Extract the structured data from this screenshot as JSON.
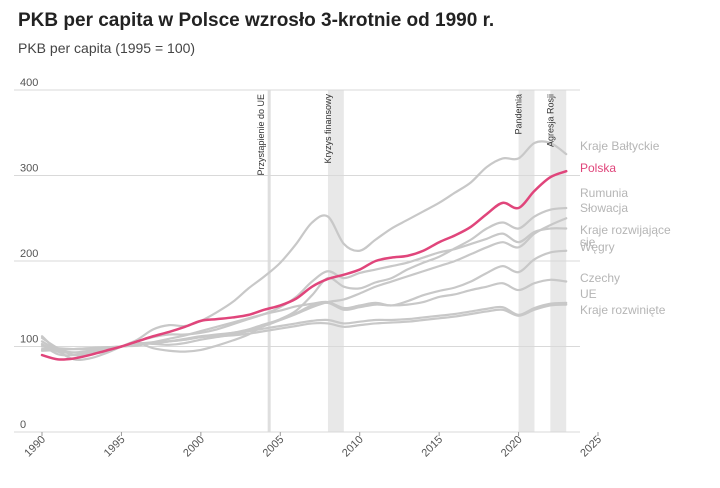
{
  "chart_data": {
    "type": "line",
    "title": "PKB per capita w Polsce wzrosło 3-krotnie od 1990 r.",
    "subtitle": "PKB per capita (1995 = 100)",
    "xlabel": "",
    "ylabel": "",
    "xlim": [
      1990,
      2025
    ],
    "ylim": [
      0,
      400
    ],
    "x_ticks": [
      "1990",
      "1995",
      "2000",
      "2005",
      "2010",
      "2015",
      "2020",
      "2025"
    ],
    "y_ticks": [
      "0",
      "100",
      "200",
      "300",
      "400"
    ],
    "gridlines": "horizontal",
    "highlight_color": "#e0457b",
    "base_color": "#c8c8c8",
    "annotations": [
      {
        "label": "Przystąpienie do UE",
        "year": 2004.3
      },
      {
        "label": "Kryzys finansowy",
        "year_start": 2008,
        "year_end": 2009
      },
      {
        "label": "Pandemia",
        "year_start": 2020,
        "year_end": 2021
      },
      {
        "label": "Agresja Rosji",
        "year_start": 2022,
        "year_end": 2023
      }
    ],
    "x": [
      1990,
      1991,
      1992,
      1993,
      1994,
      1995,
      1996,
      1997,
      1998,
      1999,
      2000,
      2001,
      2002,
      2003,
      2004,
      2005,
      2006,
      2007,
      2008,
      2009,
      2010,
      2011,
      2012,
      2013,
      2014,
      2015,
      2016,
      2017,
      2018,
      2019,
      2020,
      2021,
      2022,
      2023
    ],
    "series": [
      {
        "name": "Kraje Bałtyckie",
        "label": "Kraje Bałtyckie",
        "highlight": false,
        "values": [
          112,
          95,
          85,
          86,
          92,
          100,
          108,
          120,
          125,
          124,
          130,
          140,
          152,
          168,
          182,
          198,
          220,
          245,
          252,
          220,
          212,
          225,
          238,
          248,
          258,
          268,
          280,
          292,
          310,
          320,
          320,
          338,
          338,
          325
        ]
      },
      {
        "name": "Polska",
        "label": "Polska",
        "highlight": true,
        "values": [
          90,
          85,
          86,
          90,
          95,
          100,
          106,
          112,
          117,
          123,
          130,
          132,
          134,
          137,
          143,
          148,
          156,
          170,
          179,
          184,
          190,
          200,
          204,
          206,
          212,
          222,
          230,
          240,
          255,
          268,
          262,
          282,
          298,
          305
        ]
      },
      {
        "name": "Rumunia",
        "label": "Rumunia",
        "highlight": false,
        "values": [
          110,
          98,
          90,
          91,
          94,
          100,
          104,
          98,
          95,
          94,
          96,
          101,
          107,
          114,
          125,
          132,
          142,
          160,
          180,
          170,
          168,
          175,
          180,
          190,
          198,
          205,
          215,
          225,
          238,
          245,
          238,
          252,
          260,
          262
        ]
      },
      {
        "name": "Słowacja",
        "label": "Słowacja",
        "highlight": false,
        "values": [
          102,
          91,
          90,
          93,
          97,
          100,
          106,
          111,
          114,
          114,
          116,
          120,
          126,
          132,
          138,
          146,
          158,
          176,
          188,
          180,
          186,
          190,
          194,
          198,
          204,
          210,
          214,
          220,
          226,
          232,
          222,
          234,
          238,
          238
        ]
      },
      {
        "name": "Kraje rozwijające się",
        "label": "Kraje rozwijające się",
        "highlight": false,
        "values": [
          100,
          98,
          97,
          97,
          98,
          100,
          103,
          105,
          106,
          108,
          111,
          113,
          116,
          120,
          126,
          131,
          138,
          146,
          152,
          155,
          162,
          170,
          176,
          182,
          188,
          194,
          200,
          208,
          216,
          222,
          216,
          232,
          242,
          250
        ]
      },
      {
        "name": "Węgry",
        "label": "Węgry",
        "highlight": false,
        "values": [
          106,
          96,
          93,
          93,
          96,
          100,
          101,
          105,
          109,
          113,
          118,
          123,
          128,
          133,
          138,
          142,
          147,
          150,
          152,
          145,
          148,
          151,
          148,
          153,
          160,
          165,
          169,
          176,
          186,
          194,
          187,
          202,
          210,
          212
        ]
      },
      {
        "name": "Czechy",
        "label": "Czechy",
        "highlight": false,
        "values": [
          103,
          94,
          93,
          95,
          97,
          100,
          104,
          103,
          102,
          104,
          108,
          111,
          114,
          118,
          124,
          131,
          139,
          148,
          151,
          143,
          146,
          149,
          148,
          149,
          152,
          158,
          161,
          166,
          170,
          174,
          166,
          174,
          178,
          176
        ]
      },
      {
        "name": "UE",
        "label": "UE",
        "highlight": false,
        "values": [
          95,
          96,
          97,
          98,
          99,
          100,
          102,
          104,
          106,
          109,
          112,
          114,
          116,
          118,
          121,
          124,
          127,
          130,
          131,
          127,
          129,
          131,
          131,
          132,
          134,
          136,
          138,
          141,
          144,
          146,
          137,
          145,
          150,
          151
        ]
      },
      {
        "name": "Kraje rozwinięte",
        "label": "Kraje rozwinięte",
        "highlight": false,
        "values": [
          97,
          97,
          97,
          98,
          99,
          100,
          102,
          104,
          106,
          108,
          111,
          112,
          113,
          115,
          118,
          121,
          124,
          127,
          127,
          123,
          125,
          127,
          128,
          129,
          131,
          133,
          135,
          138,
          141,
          143,
          136,
          143,
          148,
          149
        ]
      }
    ]
  }
}
